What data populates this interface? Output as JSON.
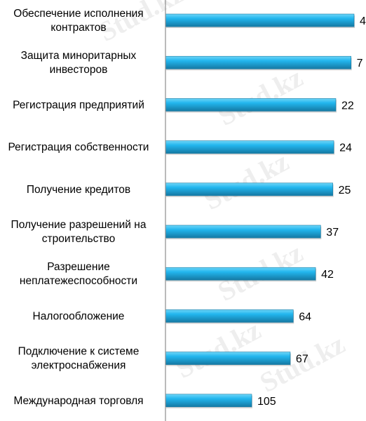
{
  "watermark": "Stud.kz",
  "colors": {
    "bar_fill": "#22b6ee",
    "bar_top": "#6fd6f8",
    "bar_shadow": "#1579a3",
    "axis": "#8c8c8c",
    "watermark": "#dddddd"
  },
  "chart_data": {
    "type": "bar",
    "orientation": "horizontal",
    "title": "",
    "xlabel": "",
    "ylabel": "",
    "grid": false,
    "legend": "none",
    "xlim": [
      0,
      110
    ],
    "categories": [
      [
        "Обеспечение исполнения",
        "контрактов"
      ],
      [
        "Защита миноритарных",
        "инвесторов"
      ],
      [
        "Регистрация предприятий"
      ],
      [
        "Регистрация собственности"
      ],
      [
        "Получение кредитов"
      ],
      [
        "Получение разрешений на",
        "строительство"
      ],
      [
        "Разрешение",
        "неплатежеспособности"
      ],
      [
        "Налогообложение"
      ],
      [
        "Подключение к системе",
        "электроснабжения"
      ],
      [
        "Международная торговля"
      ]
    ],
    "values": [
      4,
      7,
      22,
      24,
      25,
      37,
      42,
      64,
      67,
      105
    ]
  }
}
